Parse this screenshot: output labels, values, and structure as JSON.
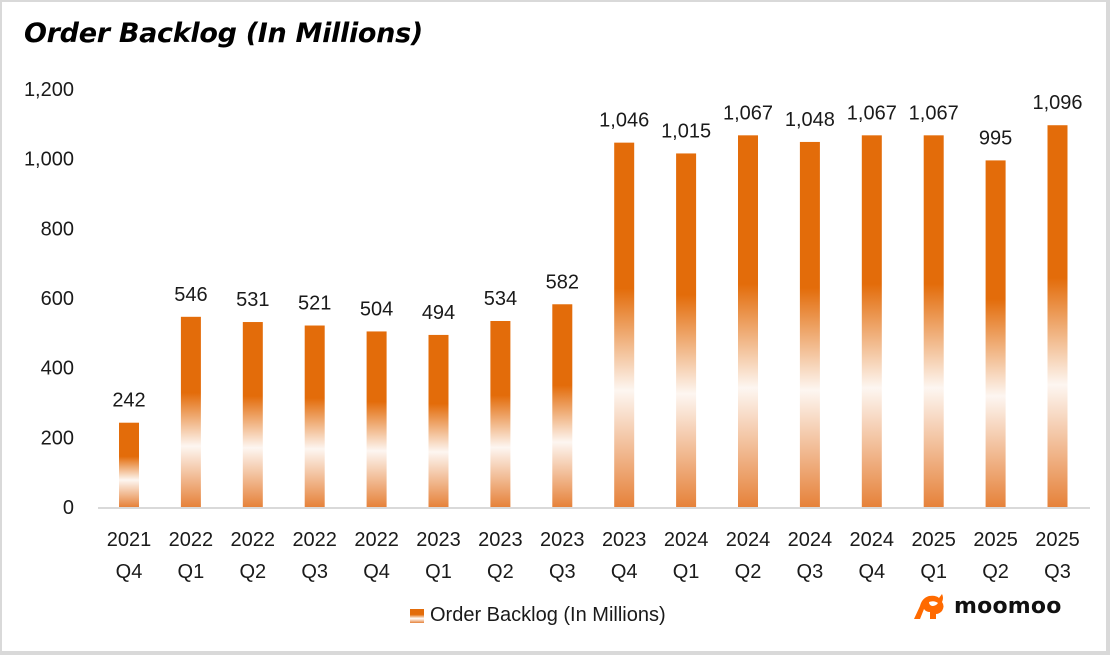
{
  "title": "Order Backlog (In Millions)",
  "legend": {
    "label": "Order Backlog (In Millions)"
  },
  "brand": {
    "name": "moomoo",
    "color": "#FF6A00"
  },
  "colors": {
    "bar": "#E36C0A",
    "bar_light": "#FFFFFF",
    "axis": "#D9D9D9"
  },
  "chart_data": {
    "type": "bar",
    "title": "Order Backlog (In Millions)",
    "xlabel": "",
    "ylabel": "",
    "ylim": [
      0,
      1200
    ],
    "yticks": [
      0,
      200,
      400,
      600,
      800,
      1000,
      1200
    ],
    "ytick_labels": [
      "0",
      "200",
      "400",
      "600",
      "800",
      "1,000",
      "1,200"
    ],
    "grid": false,
    "legend_position": "bottom",
    "categories": [
      [
        "2021",
        "Q4"
      ],
      [
        "2022",
        "Q1"
      ],
      [
        "2022",
        "Q2"
      ],
      [
        "2022",
        "Q3"
      ],
      [
        "2022",
        "Q4"
      ],
      [
        "2023",
        "Q1"
      ],
      [
        "2023",
        "Q2"
      ],
      [
        "2023",
        "Q3"
      ],
      [
        "2023",
        "Q4"
      ],
      [
        "2024",
        "Q1"
      ],
      [
        "2024",
        "Q2"
      ],
      [
        "2024",
        "Q3"
      ],
      [
        "2024",
        "Q4"
      ],
      [
        "2025",
        "Q1"
      ],
      [
        "2025",
        "Q2"
      ],
      [
        "2025",
        "Q3"
      ]
    ],
    "series": [
      {
        "name": "Order Backlog (In Millions)",
        "values": [
          242,
          546,
          531,
          521,
          504,
          494,
          534,
          582,
          1046,
          1015,
          1067,
          1048,
          1067,
          1067,
          995,
          1096
        ],
        "value_labels": [
          "242",
          "546",
          "531",
          "521",
          "504",
          "494",
          "534",
          "582",
          "1,046",
          "1,015",
          "1,067",
          "1,048",
          "1,067",
          "1,067",
          "995",
          "1,096"
        ]
      }
    ]
  }
}
